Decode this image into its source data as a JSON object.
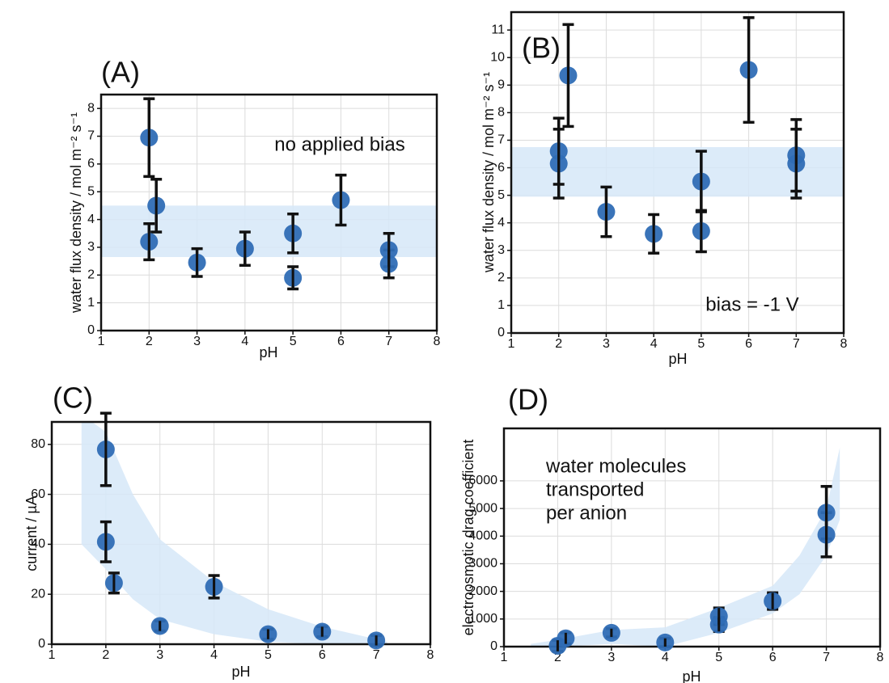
{
  "chart_data": [
    {
      "type": "scatter",
      "panel_label": "(A)",
      "annotation": "no applied bias",
      "x_label": "pH",
      "y_label": "water flux density / mol m⁻² s⁻¹",
      "xlim": [
        1,
        8
      ],
      "xticks": [
        1,
        2,
        3,
        4,
        5,
        6,
        7,
        8
      ],
      "ylim": [
        0,
        8.5
      ],
      "yticks": [
        0,
        1,
        2,
        3,
        4,
        5,
        6,
        7,
        8
      ],
      "grid": true,
      "color": "#2f6db5",
      "x": [
        2,
        2,
        2.15,
        3,
        4,
        5,
        5,
        6,
        7,
        7
      ],
      "values": [
        6.95,
        3.2,
        4.5,
        2.45,
        2.95,
        3.5,
        1.9,
        4.7,
        2.9,
        2.4
      ],
      "errors": [
        1.4,
        0.65,
        0.95,
        0.5,
        0.6,
        0.7,
        0.4,
        0.9,
        0.6,
        0.5
      ],
      "band": {
        "color": "#d6e8f8",
        "x": [
          1,
          8
        ],
        "upper": [
          4.5,
          4.5
        ],
        "lower": [
          2.65,
          2.65
        ]
      }
    },
    {
      "type": "scatter",
      "panel_label": "(B)",
      "annotation": "bias = -1 V",
      "x_label": "pH",
      "y_label": "water flux density / mol m⁻² s⁻¹",
      "xlim": [
        1,
        8
      ],
      "xticks": [
        1,
        2,
        3,
        4,
        5,
        6,
        7,
        8
      ],
      "ylim": [
        0,
        11.65
      ],
      "yticks": [
        0,
        1,
        2,
        3,
        4,
        5,
        6,
        7,
        8,
        9,
        10,
        11
      ],
      "grid": true,
      "color": "#2f6db5",
      "x": [
        2,
        2,
        2.2,
        3,
        4,
        5,
        5,
        6,
        7,
        7
      ],
      "values": [
        6.6,
        6.15,
        9.35,
        4.4,
        3.6,
        5.5,
        3.7,
        9.55,
        6.45,
        6.15
      ],
      "errors": [
        1.2,
        1.25,
        1.85,
        0.9,
        0.7,
        1.1,
        0.75,
        1.9,
        1.3,
        1.25
      ],
      "band": {
        "color": "#d6e8f8",
        "x": [
          1,
          8
        ],
        "upper": [
          6.75,
          6.75
        ],
        "lower": [
          4.95,
          4.95
        ]
      }
    },
    {
      "type": "scatter",
      "panel_label": "(C)",
      "x_label": "pH",
      "y_label": "current / µA",
      "xlim": [
        1,
        8
      ],
      "xticks": [
        1,
        2,
        3,
        4,
        5,
        6,
        7,
        8
      ],
      "ylim": [
        0,
        89
      ],
      "yticks": [
        0,
        20,
        40,
        60,
        80
      ],
      "grid": true,
      "color": "#2f6db5",
      "x": [
        2,
        2,
        2.15,
        3,
        4,
        5,
        6,
        7
      ],
      "values": [
        78,
        41,
        24.5,
        7.3,
        23,
        4,
        5,
        1.5
      ],
      "errors": [
        14.5,
        8,
        4,
        2,
        4.5,
        2,
        2,
        2
      ],
      "band": {
        "color": "#d6e8f8",
        "x": [
          1.55,
          2,
          2.5,
          3,
          4,
          5,
          6,
          7.2
        ],
        "upper": [
          92,
          85,
          60,
          42,
          25,
          14,
          7,
          1
        ],
        "lower": [
          40,
          30,
          18,
          10,
          4,
          1,
          0,
          0
        ]
      }
    },
    {
      "type": "scatter",
      "panel_label": "(D)",
      "annotation": [
        "water molecules",
        "transported",
        "per anion"
      ],
      "x_label": "pH",
      "y_label": "electroosmotic drag coefficient",
      "xlim": [
        1,
        8
      ],
      "xticks": [
        1,
        2,
        3,
        4,
        5,
        6,
        7,
        8
      ],
      "ylim": [
        0,
        7900
      ],
      "yticks": [
        0,
        1000,
        2000,
        3000,
        4000,
        5000,
        6000
      ],
      "grid": true,
      "color": "#2f6db5",
      "x": [
        2,
        2.15,
        3,
        4,
        5,
        5,
        6,
        7,
        7
      ],
      "values": [
        30,
        300,
        500,
        150,
        1100,
        800,
        1650,
        4850,
        4050
      ],
      "errors": [
        200,
        200,
        150,
        150,
        300,
        250,
        300,
        950,
        800
      ],
      "band": {
        "color": "#d6e8f8",
        "x": [
          1.5,
          2,
          3,
          4,
          5,
          6,
          6.5,
          7,
          7.25
        ],
        "upper": [
          100,
          250,
          600,
          700,
          1400,
          2200,
          3300,
          5000,
          7200
        ],
        "lower": [
          0,
          0,
          100,
          0,
          500,
          1200,
          1900,
          3300,
          4600
        ]
      }
    }
  ]
}
